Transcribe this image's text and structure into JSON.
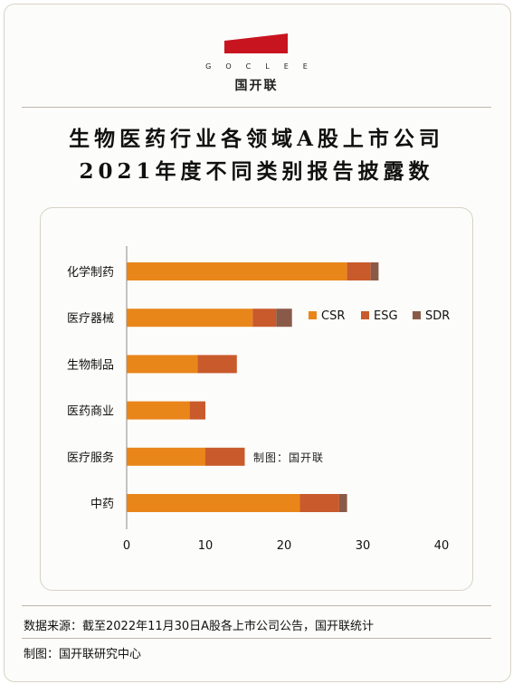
{
  "brand": {
    "name_en": "GOCLEE",
    "name_cn": "国开联",
    "accent_color": "#c8141e"
  },
  "title": {
    "line1": "生物医药行业各领域A股上市公司",
    "line2": "2021年度不同类别报告披露数"
  },
  "chart_data": {
    "type": "bar",
    "orientation": "horizontal",
    "stacked": true,
    "categories": [
      "化学制药",
      "医疗器械",
      "生物制品",
      "医药商业",
      "医疗服务",
      "中药"
    ],
    "series": [
      {
        "name": "CSR",
        "color": "#e8861a",
        "values": [
          28,
          16,
          9,
          8,
          10,
          22
        ]
      },
      {
        "name": "ESG",
        "color": "#c95a2b",
        "values": [
          3,
          3,
          5,
          2,
          5,
          5
        ]
      },
      {
        "name": "SDR",
        "color": "#8a5a48",
        "values": [
          1,
          2,
          0,
          0,
          0,
          1
        ]
      }
    ],
    "xlim": [
      0,
      40
    ],
    "xticks": [
      "0",
      "10",
      "20",
      "30",
      "40"
    ],
    "grid": false,
    "legend_position": "right",
    "annotation": "制图：国开联"
  },
  "footer": {
    "source": "数据来源：截至2022年11月30日A股各上市公司公告，国开联统计",
    "credit": "制图：国开联研究中心"
  }
}
